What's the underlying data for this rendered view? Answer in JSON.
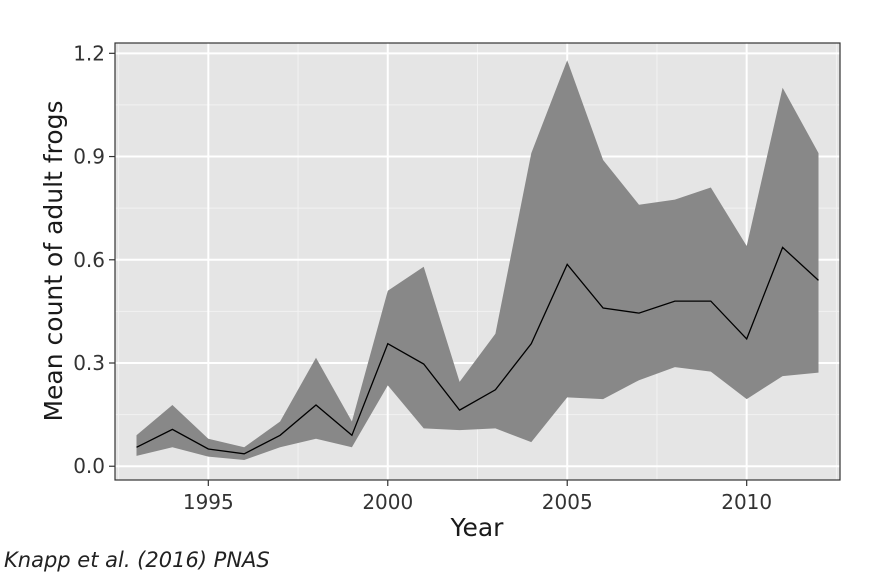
{
  "chart_data": {
    "type": "line",
    "title": "",
    "xlabel": "Year",
    "ylabel": "Mean count of adult frogs",
    "xlim": [
      1992.4,
      2012.6
    ],
    "ylim": [
      -0.04,
      1.23
    ],
    "x_ticks": [
      1995,
      2000,
      2005,
      2010
    ],
    "x_tick_labels": [
      "1995",
      "2000",
      "2005",
      "2010"
    ],
    "y_ticks": [
      0.0,
      0.3,
      0.6,
      0.9,
      1.2
    ],
    "y_tick_labels": [
      "0.0",
      "0.3",
      "0.6",
      "0.9",
      "1.2"
    ],
    "grid": true,
    "x": [
      1993,
      1994,
      1995,
      1996,
      1997,
      1998,
      1999,
      2000,
      2001,
      2002,
      2003,
      2004,
      2005,
      2006,
      2007,
      2008,
      2009,
      2010,
      2011,
      2012
    ],
    "mean": [
      0.055,
      0.107,
      0.05,
      0.036,
      0.09,
      0.178,
      0.09,
      0.356,
      0.297,
      0.163,
      0.222,
      0.356,
      0.587,
      0.46,
      0.445,
      0.48,
      0.48,
      0.37,
      0.636,
      0.54
    ],
    "lower": [
      0.03,
      0.055,
      0.028,
      0.018,
      0.055,
      0.08,
      0.055,
      0.235,
      0.11,
      0.105,
      0.11,
      0.07,
      0.2,
      0.195,
      0.25,
      0.288,
      0.275,
      0.195,
      0.262,
      0.272
    ],
    "upper": [
      0.09,
      0.178,
      0.08,
      0.055,
      0.13,
      0.315,
      0.13,
      0.51,
      0.58,
      0.245,
      0.385,
      0.91,
      1.18,
      0.89,
      0.76,
      0.775,
      0.81,
      0.64,
      1.1,
      0.91
    ],
    "colors": {
      "panel": "#e5e5e5",
      "grid_major": "#ffffff",
      "grid_minor": "#f2f2f2",
      "ribbon": "#888888",
      "line": "#000000",
      "axis_text": "#333333",
      "title_text": "#1a1a1a"
    }
  },
  "credit": "Knapp et al. (2016) PNAS"
}
